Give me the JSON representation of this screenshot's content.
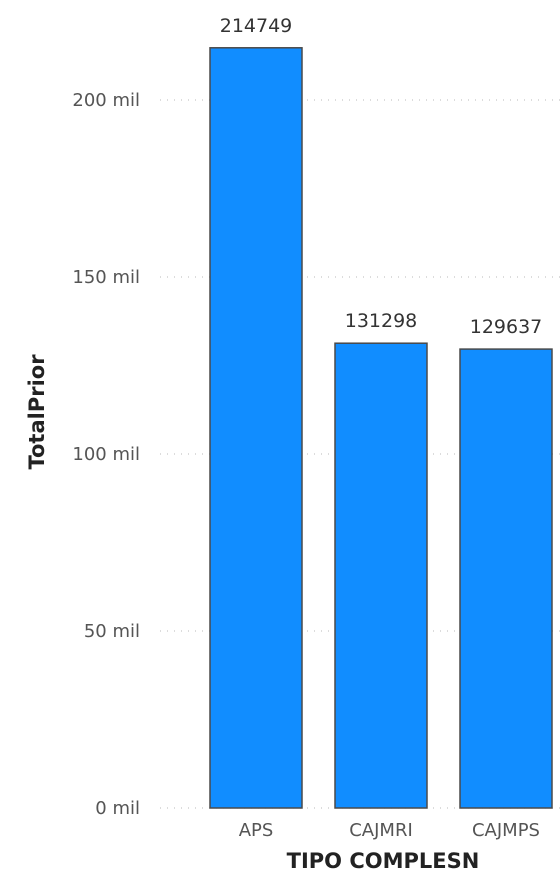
{
  "chart_data": {
    "type": "bar",
    "categories": [
      "APS",
      "CAJMRI",
      "CAJMPS"
    ],
    "values": [
      214749,
      131298,
      129637
    ],
    "data_labels": [
      "214749",
      "131298",
      "129637"
    ],
    "title": "",
    "xlabel": "TIPO COMPLESN",
    "ylabel": "TotalPrior",
    "ylim": [
      0,
      230000
    ],
    "y_ticks": [
      0,
      50000,
      100000,
      150000,
      200000
    ],
    "y_tick_labels": [
      "0 mil",
      "50 mil",
      "100 mil",
      "150 mil",
      "200 mil"
    ],
    "grid": true,
    "legend": "none",
    "bar_color": "#118DFF",
    "bar_border_color": "#4a4a4a"
  }
}
